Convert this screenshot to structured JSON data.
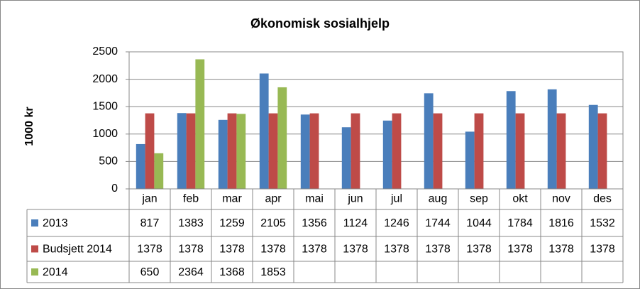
{
  "chart_data": {
    "type": "bar",
    "title": "Økonomisk sosialhjelp",
    "y_label": "1000 kr",
    "categories": [
      "jan",
      "feb",
      "mar",
      "apr",
      "mai",
      "jun",
      "jul",
      "aug",
      "sep",
      "okt",
      "nov",
      "des"
    ],
    "series": [
      {
        "name": "2013",
        "color": "#4a7ebb",
        "values": [
          817,
          1383,
          1259,
          2105,
          1356,
          1124,
          1246,
          1744,
          1044,
          1784,
          1816,
          1532
        ]
      },
      {
        "name": "Budsjett 2014",
        "color": "#be4b48",
        "values": [
          1378,
          1378,
          1378,
          1378,
          1378,
          1378,
          1378,
          1378,
          1378,
          1378,
          1378,
          1378
        ]
      },
      {
        "name": "2014",
        "color": "#98b954",
        "values": [
          650,
          2364,
          1368,
          1853,
          null,
          null,
          null,
          null,
          null,
          null,
          null,
          null
        ]
      }
    ],
    "ylim": [
      0,
      2500
    ],
    "yticks": [
      0,
      500,
      1000,
      1500,
      2000,
      2500
    ],
    "grid": true,
    "data_table": true
  }
}
